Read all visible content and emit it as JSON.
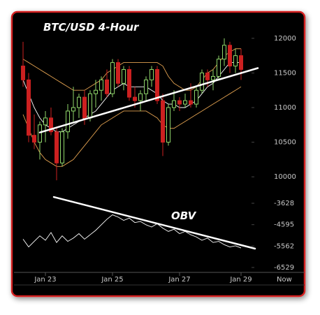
{
  "chart_data": [
    {
      "type": "candlestick",
      "title": "BTC/USD 4-Hour",
      "open": [
        11600,
        11400,
        10600,
        10500,
        10750,
        10850,
        10650,
        10200,
        10650,
        10950,
        11000,
        11150,
        10850,
        11200,
        11250,
        11400,
        11200,
        11650,
        11350,
        11550,
        11150,
        11100,
        11200,
        11400,
        11550,
        11100,
        10500,
        11000,
        11100,
        11050,
        11100,
        11050,
        11250,
        11500,
        11400,
        11450,
        11700,
        11900,
        11600,
        11750
      ],
      "high": [
        11950,
        11500,
        10900,
        10800,
        10950,
        11000,
        10700,
        10700,
        11050,
        11300,
        11200,
        11250,
        11250,
        11400,
        11450,
        11550,
        11700,
        11700,
        11600,
        11600,
        11300,
        11250,
        11450,
        11600,
        11600,
        11200,
        11050,
        11250,
        11150,
        11200,
        11350,
        11300,
        11550,
        11550,
        11550,
        11750,
        12000,
        11950,
        11850,
        11850
      ],
      "low": [
        11300,
        10500,
        10400,
        10250,
        10500,
        10600,
        9950,
        10150,
        10550,
        10800,
        10850,
        10750,
        10800,
        11000,
        11100,
        11150,
        11150,
        11300,
        11250,
        11100,
        11000,
        10950,
        11100,
        11300,
        11050,
        10300,
        10450,
        10950,
        10950,
        11000,
        11000,
        11000,
        11200,
        11300,
        11250,
        11400,
        11600,
        11500,
        11500,
        11400
      ],
      "close": [
        11400,
        10600,
        10500,
        10750,
        10850,
        10650,
        10200,
        10650,
        10950,
        11000,
        11150,
        10850,
        11200,
        11250,
        11400,
        11200,
        11650,
        11350,
        11550,
        11150,
        11100,
        11200,
        11400,
        11550,
        11100,
        10500,
        11000,
        11100,
        11050,
        11100,
        11050,
        11250,
        11500,
        11400,
        11450,
        11700,
        11900,
        11600,
        11750,
        11550
      ],
      "up_color": "#8fd66a",
      "down_color": "#cc2020",
      "lines": [
        {
          "color": "#e0a050",
          "values": [
            11700,
            11650,
            11600,
            11550,
            11500,
            11450,
            11400,
            11350,
            11300,
            11250,
            11250,
            11250,
            11300,
            11350,
            11400,
            11500,
            11550,
            11600,
            11650,
            11650,
            11650,
            11650,
            11650,
            11650,
            11650,
            11600,
            11450,
            11350,
            11300,
            11250,
            11250,
            11300,
            11400,
            11500,
            11550,
            11650,
            11750,
            11800,
            11850,
            11850
          ]
        },
        {
          "color": "#e0a050",
          "values": [
            10900,
            10700,
            10500,
            10350,
            10250,
            10200,
            10150,
            10150,
            10200,
            10250,
            10350,
            10450,
            10550,
            10650,
            10750,
            10800,
            10850,
            10900,
            10950,
            10950,
            10950,
            10950,
            10950,
            10900,
            10850,
            10750,
            10700,
            10700,
            10750,
            10800,
            10850,
            10900,
            10950,
            11000,
            11050,
            11100,
            11150,
            11200,
            11250,
            11300
          ]
        },
        {
          "color": "#ffffff",
          "values": [
            11400,
            11200,
            11000,
            10850,
            10750,
            10700,
            10650,
            10650,
            10700,
            10750,
            10800,
            10850,
            10900,
            10950,
            11050,
            11150,
            11250,
            11300,
            11350,
            11300,
            11300,
            11300,
            11300,
            11250,
            11200,
            11100,
            11050,
            11050,
            11000,
            11000,
            11050,
            11100,
            11200,
            11300,
            11350,
            11450,
            11550,
            11650,
            11650,
            11650
          ]
        }
      ],
      "trendline": {
        "x": [
          3,
          42
        ],
        "values": [
          10640,
          11570
        ],
        "color": "#ffffff"
      },
      "ylim": [
        9830,
        12150
      ],
      "yticks": [
        10000,
        10500,
        11000,
        11500,
        12000
      ]
    },
    {
      "type": "line",
      "annotation": "OBV",
      "color": "#ffffff",
      "values": [
        -5250,
        -5600,
        -5350,
        -5100,
        -5300,
        -4950,
        -5400,
        -5100,
        -5350,
        -5200,
        -5000,
        -5250,
        -5050,
        -4850,
        -4600,
        -4350,
        -4150,
        -4250,
        -4400,
        -4300,
        -4500,
        -4450,
        -4600,
        -4700,
        -4550,
        -4750,
        -4900,
        -4800,
        -5000,
        -4900,
        -5050,
        -5150,
        -5300,
        -5200,
        -5400,
        -5350,
        -5500,
        -5600,
        -5550,
        -5650
      ],
      "categories": [
        null,
        null,
        null,
        null,
        "Jan 23",
        null,
        null,
        null,
        null,
        null,
        null,
        null,
        null,
        null,
        null,
        null,
        "Jan 25",
        null,
        null,
        null,
        null,
        null,
        null,
        null,
        null,
        null,
        null,
        null,
        "Jan 27",
        null,
        null,
        null,
        null,
        null,
        null,
        null,
        null,
        null,
        null,
        "Jan 29"
      ],
      "x_end_label": "Now",
      "trendline": {
        "x": [
          5.5,
          41.5
        ],
        "values": [
          -3344,
          -5678
        ],
        "color": "#ffffff"
      },
      "ylim": [
        -6720,
        -3280
      ],
      "yticks": [
        -3628,
        -4595,
        -5562,
        -6529
      ]
    }
  ]
}
